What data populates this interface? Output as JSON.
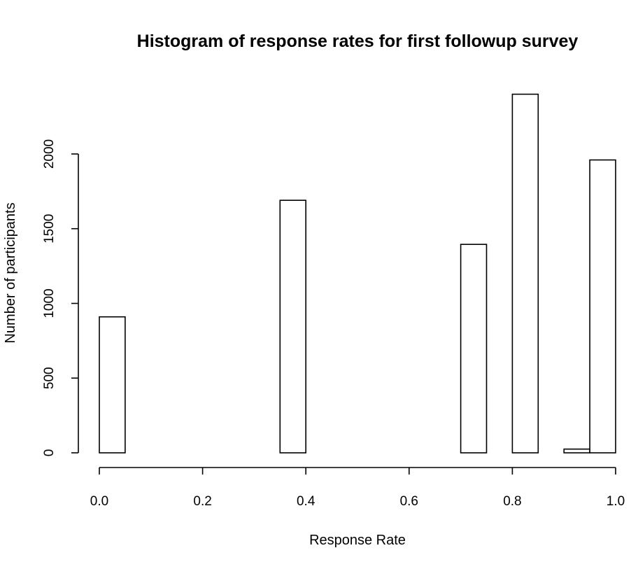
{
  "chart_data": {
    "type": "bar",
    "title": "Histogram of response rates for first followup survey",
    "xlabel": "Response Rate",
    "ylabel": "Number of participants",
    "xlim": [
      0,
      1
    ],
    "ylim": [
      0,
      2400
    ],
    "x_ticks": [
      0.0,
      0.2,
      0.4,
      0.6,
      0.8,
      1.0
    ],
    "x_tick_labels": [
      "0.0",
      "0.2",
      "0.4",
      "0.6",
      "0.8",
      "1.0"
    ],
    "y_ticks": [
      0,
      500,
      1000,
      1500,
      2000
    ],
    "y_tick_labels": [
      "0",
      "500",
      "1000",
      "1500",
      "2000"
    ],
    "bins": [
      {
        "x0": 0.0,
        "x1": 0.05,
        "count": 910
      },
      {
        "x0": 0.35,
        "x1": 0.4,
        "count": 1690
      },
      {
        "x0": 0.7,
        "x1": 0.75,
        "count": 1395
      },
      {
        "x0": 0.8,
        "x1": 0.85,
        "count": 2400
      },
      {
        "x0": 0.9,
        "x1": 0.95,
        "count": 25
      },
      {
        "x0": 0.95,
        "x1": 1.0,
        "count": 1960
      }
    ],
    "grid": false,
    "bar_fill": "#ffffff",
    "bar_stroke": "#000000"
  }
}
